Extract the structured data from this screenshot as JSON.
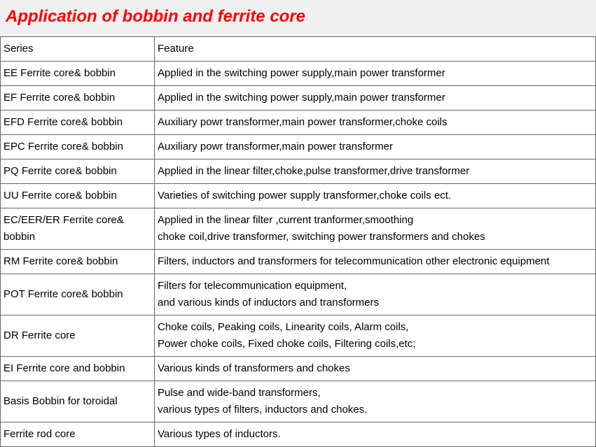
{
  "title": "Application of bobbin and ferrite core",
  "header": {
    "c1": "Series",
    "c2": "Feature"
  },
  "rows": [
    {
      "c1": "EE Ferrite core& bobbin",
      "c2": "Applied in the switching power supply,main power transformer"
    },
    {
      "c1": "EF Ferrite core& bobbin",
      "c2": "Applied in the switching power supply,main power transformer"
    },
    {
      "c1": "EFD Ferrite core& bobbin",
      "c2": "Auxiliary powr transformer,main power transformer,choke coils"
    },
    {
      "c1": "EPC Ferrite core& bobbin",
      "c2": "Auxiliary powr transformer,main power transformer"
    },
    {
      "c1": "PQ Ferrite core& bobbin",
      "c2": "Applied in the linear filter,choke,pulse transformer,drive transformer"
    },
    {
      "c1": "UU Ferrite core& bobbin",
      "c2": "Varieties of switching power supply transformer,choke coils ect."
    },
    {
      "c1": "EC/EER/ER  Ferrite core& bobbin",
      "c2": "Applied in the linear filter ,current tranformer,smoothing\nchoke coil,drive transformer, switching power transformers and chokes"
    },
    {
      "c1": "RM  Ferrite core& bobbin",
      "c2": "Filters, inductors and transformers for telecommunication other electronic equipment"
    },
    {
      "c1": "POT  Ferrite core& bobbin",
      "c2": "Filters for telecommunication equipment,\nand various kinds of inductors and transformers"
    },
    {
      "c1": "DR Ferrite core",
      "c2": "Choke coils, Peaking coils, Linearity coils, Alarm coils,\nPower choke coils, Fixed choke coils, Filtering coils,etc;"
    },
    {
      "c1": "EI Ferrite core and bobbin",
      "c2": "Various kinds of transformers and chokes"
    },
    {
      "c1": "Basis Bobbin for toroidal",
      "c2": "Pulse and wide-band transformers,\nvarious types of filters, inductors and chokes."
    },
    {
      "c1": "Ferrite rod core",
      "c2": "Various types of inductors."
    }
  ]
}
